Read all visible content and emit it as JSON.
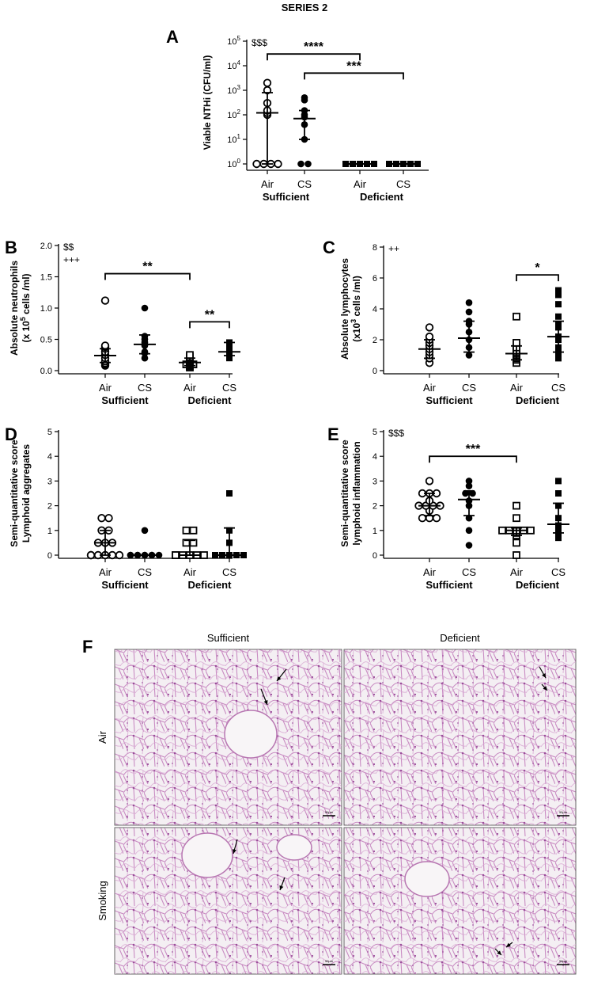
{
  "header": {
    "title": "SERIES 2"
  },
  "colors": {
    "ink": "#000000",
    "histo_bg": "#f3eef2",
    "histo_cell": "#c88ac2",
    "histo_border": "#666666"
  },
  "chart_data": [
    {
      "panel": "A",
      "type": "scatter",
      "ylabel": "Viable NTHi (CFU/ml)",
      "scale": "log10",
      "ylim": [
        1,
        100000
      ],
      "yticks": [
        {
          "v": 1,
          "base": "10",
          "exp": "0"
        },
        {
          "v": 10,
          "base": "10",
          "exp": "1"
        },
        {
          "v": 100,
          "base": "10",
          "exp": "2"
        },
        {
          "v": 1000,
          "base": "10",
          "exp": "3"
        },
        {
          "v": 10000,
          "base": "10",
          "exp": "4"
        },
        {
          "v": 100000,
          "base": "10",
          "exp": "5"
        }
      ],
      "categories": [
        "Air",
        "CS",
        "Air",
        "CS"
      ],
      "group_labels": [
        "Sufficient",
        "Deficient"
      ],
      "marks": [
        "open-circle",
        "filled-circle",
        "filled-square",
        "filled-square"
      ],
      "series": [
        {
          "values": [
            1,
            1,
            1,
            1,
            100,
            120,
            150,
            300,
            1000,
            2000
          ],
          "mean": 120,
          "err": [
            1,
            800
          ]
        },
        {
          "values": [
            1,
            1,
            10,
            40,
            80,
            100,
            150,
            400,
            500
          ],
          "mean": 70,
          "err": [
            10,
            150
          ]
        },
        {
          "values": [
            1,
            1,
            1,
            1,
            1,
            1,
            1,
            1,
            1,
            1
          ],
          "mean": 1,
          "err": [
            1,
            1
          ]
        },
        {
          "values": [
            1,
            1,
            1,
            1,
            1,
            1,
            1,
            1,
            1
          ],
          "mean": 1,
          "err": [
            1,
            1
          ]
        }
      ],
      "annotations": [
        {
          "text": "$$$",
          "pos": "top-left"
        },
        {
          "text": "****",
          "from": 0,
          "to": 2,
          "y": 30000
        },
        {
          "text": "***",
          "from": 1,
          "to": 3,
          "y": 5000
        }
      ]
    },
    {
      "panel": "B",
      "type": "scatter",
      "ylabel": "Absolute neutrophils",
      "ylabel2": {
        "pre": "(x 10",
        "sup": "5",
        "post": " cells /ml)"
      },
      "ylim": [
        0,
        2.0
      ],
      "yticks": [
        {
          "v": 0,
          "label": "0.0"
        },
        {
          "v": 0.5,
          "label": "0.5"
        },
        {
          "v": 1.0,
          "label": "1.0"
        },
        {
          "v": 1.5,
          "label": "1.5"
        },
        {
          "v": 2.0,
          "label": "2.0"
        }
      ],
      "categories": [
        "Air",
        "CS",
        "Air",
        "CS"
      ],
      "group_labels": [
        "Sufficient",
        "Deficient"
      ],
      "marks": [
        "open-circle",
        "filled-circle",
        "open-square",
        "filled-square"
      ],
      "series": [
        {
          "values": [
            0.08,
            0.1,
            0.12,
            0.15,
            0.2,
            0.25,
            0.3,
            0.35,
            0.38,
            0.4,
            1.12
          ],
          "mean": 0.24,
          "err": [
            0.13,
            0.35
          ]
        },
        {
          "values": [
            0.2,
            0.28,
            0.3,
            0.4,
            0.45,
            0.5,
            0.55,
            1.0
          ],
          "mean": 0.42,
          "err": [
            0.27,
            0.57
          ]
        },
        {
          "values": [
            0.05,
            0.07,
            0.08,
            0.1,
            0.1,
            0.12,
            0.13,
            0.15,
            0.17,
            0.2,
            0.22,
            0.25
          ],
          "mean": 0.13,
          "err": [
            0.08,
            0.2
          ]
        },
        {
          "values": [
            0.2,
            0.22,
            0.25,
            0.28,
            0.3,
            0.35,
            0.42,
            0.45
          ],
          "mean": 0.3,
          "err": [
            0.24,
            0.45
          ]
        }
      ],
      "annotations": [
        {
          "text": "$$",
          "pos": "top-left"
        },
        {
          "text": "+++",
          "pos": "top-left-2"
        },
        {
          "text": "**",
          "from": 0,
          "to": 2,
          "y": 1.55
        },
        {
          "text": "**",
          "from": 2,
          "to": 3,
          "y": 0.78
        }
      ]
    },
    {
      "panel": "C",
      "type": "scatter",
      "ylabel": "Absolute lymphocytes",
      "ylabel2": {
        "pre": "(x10",
        "sup": "3",
        "post": " cells /ml)"
      },
      "ylim": [
        0,
        8
      ],
      "yticks": [
        {
          "v": 0,
          "label": "0"
        },
        {
          "v": 2,
          "label": "2"
        },
        {
          "v": 4,
          "label": "4"
        },
        {
          "v": 6,
          "label": "6"
        },
        {
          "v": 8,
          "label": "8"
        }
      ],
      "categories": [
        "Air",
        "CS",
        "Air",
        "CS"
      ],
      "group_labels": [
        "Sufficient",
        "Deficient"
      ],
      "marks": [
        "open-circle",
        "filled-circle",
        "open-square",
        "filled-square"
      ],
      "series": [
        {
          "values": [
            0.5,
            0.8,
            1.0,
            1.2,
            1.4,
            1.6,
            1.8,
            2.0,
            2.2,
            2.8
          ],
          "mean": 1.4,
          "err": [
            0.8,
            2.0
          ]
        },
        {
          "values": [
            1.0,
            1.5,
            2.0,
            2.5,
            3.0,
            3.2,
            3.8,
            4.4
          ],
          "mean": 2.1,
          "err": [
            1.2,
            3.2
          ]
        },
        {
          "values": [
            0.5,
            0.7,
            0.8,
            0.9,
            1.0,
            1.1,
            1.2,
            1.3,
            1.5,
            1.8,
            3.5
          ],
          "mean": 1.1,
          "err": [
            0.7,
            1.6
          ]
        },
        {
          "values": [
            0.8,
            1.2,
            1.5,
            2.0,
            2.2,
            2.8,
            3.0,
            3.5,
            4.3,
            4.9,
            5.2
          ],
          "mean": 2.2,
          "err": [
            1.2,
            3.2
          ]
        }
      ],
      "annotations": [
        {
          "text": "++",
          "pos": "top-left"
        },
        {
          "text": "*",
          "from": 2,
          "to": 3,
          "y": 6.2
        }
      ]
    },
    {
      "panel": "D",
      "type": "scatter",
      "ylabel": "Semi-quantitative score",
      "ylabel2": {
        "pre": "Lymphoid aggregates",
        "sup": "",
        "post": ""
      },
      "ylim": [
        0,
        5
      ],
      "yticks": [
        {
          "v": 0,
          "label": "0"
        },
        {
          "v": 1,
          "label": "1"
        },
        {
          "v": 2,
          "label": "2"
        },
        {
          "v": 3,
          "label": "3"
        },
        {
          "v": 4,
          "label": "4"
        },
        {
          "v": 5,
          "label": "5"
        }
      ],
      "categories": [
        "Air",
        "CS",
        "Air",
        "CS"
      ],
      "group_labels": [
        "Sufficient",
        "Deficient"
      ],
      "marks": [
        "open-circle",
        "filled-circle",
        "open-square",
        "filled-square"
      ],
      "series": [
        {
          "values": [
            0,
            0,
            0,
            0,
            0,
            0,
            0.5,
            0.5,
            0.5,
            1,
            1,
            1.5,
            1.5
          ],
          "mean": 0.5,
          "err": [
            0,
            1
          ]
        },
        {
          "values": [
            0,
            0,
            0,
            0,
            0,
            0,
            0,
            0,
            0,
            1
          ],
          "mean": 0,
          "err": [
            0,
            0
          ]
        },
        {
          "values": [
            0,
            0,
            0,
            0,
            0,
            0,
            0.5,
            0.5,
            1,
            1
          ],
          "mean": 0,
          "err": [
            0,
            0.6
          ]
        },
        {
          "values": [
            0,
            0,
            0,
            0,
            0,
            0,
            0.5,
            1,
            2.5
          ],
          "mean": 0,
          "err": [
            0,
            1.1
          ]
        }
      ],
      "annotations": []
    },
    {
      "panel": "E",
      "type": "scatter",
      "ylabel": "Semi-quantitative score",
      "ylabel2": {
        "pre": "lymphoid inflammation",
        "sup": "",
        "post": ""
      },
      "ylim": [
        0,
        5
      ],
      "yticks": [
        {
          "v": 0,
          "label": "0"
        },
        {
          "v": 1,
          "label": "1"
        },
        {
          "v": 2,
          "label": "2"
        },
        {
          "v": 3,
          "label": "3"
        },
        {
          "v": 4,
          "label": "4"
        },
        {
          "v": 5,
          "label": "5"
        }
      ],
      "categories": [
        "Air",
        "CS",
        "Air",
        "CS"
      ],
      "group_labels": [
        "Sufficient",
        "Deficient"
      ],
      "marks": [
        "open-circle",
        "filled-circle",
        "open-square",
        "filled-square"
      ],
      "series": [
        {
          "values": [
            1.5,
            1.5,
            1.5,
            1.8,
            2,
            2,
            2,
            2,
            2.2,
            2.5,
            2.5,
            2.5,
            3
          ],
          "mean": 2.0,
          "err": [
            1.6,
            2.5
          ]
        },
        {
          "values": [
            0.4,
            1,
            1.5,
            2,
            2.2,
            2.5,
            2.5,
            2.8,
            3
          ],
          "mean": 2.25,
          "err": [
            1.6,
            2.6
          ]
        },
        {
          "values": [
            0,
            0.5,
            0.8,
            0.9,
            1,
            1,
            1,
            1,
            1,
            1.5,
            2
          ],
          "mean": 1.0,
          "err": [
            0.8,
            1.1
          ]
        },
        {
          "values": [
            0.7,
            0.9,
            1,
            1.2,
            1.5,
            2,
            2.5,
            3
          ],
          "mean": 1.25,
          "err": [
            0.9,
            2.1
          ]
        }
      ],
      "annotations": [
        {
          "text": "$$$",
          "pos": "top-left"
        },
        {
          "text": "***",
          "from": 0,
          "to": 2,
          "y": 4.0
        }
      ]
    }
  ],
  "histology": {
    "panel": "F",
    "columns": [
      "Sufficient",
      "Deficient"
    ],
    "rows": [
      "Air",
      "Smoking"
    ],
    "scale_label": "50μm"
  }
}
